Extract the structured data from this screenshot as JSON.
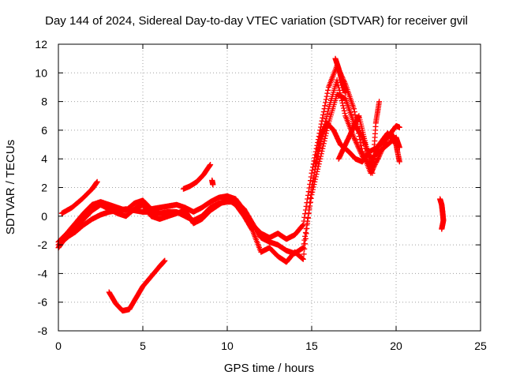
{
  "chart_data": {
    "type": "scatter",
    "title": "Day 144 of 2024, Sidereal Day-to-day VTEC variation (SDTVAR) for receiver gvil",
    "xlabel": "GPS time / hours",
    "ylabel": "SDTVAR / TECUs",
    "xlim": [
      0,
      25
    ],
    "ylim": [
      -8,
      12
    ],
    "x_ticks": [
      0,
      5,
      10,
      15,
      20,
      25
    ],
    "y_ticks": [
      -8,
      -6,
      -4,
      -2,
      0,
      2,
      4,
      6,
      8,
      10,
      12
    ],
    "grid": true,
    "marker": "+",
    "color": "#ff0000",
    "segments": [
      {
        "points": [
          [
            0.0,
            -2.2
          ],
          [
            0.3,
            -1.7
          ],
          [
            0.6,
            -1.4
          ],
          [
            1.0,
            -1.1
          ],
          [
            1.5,
            -0.6
          ],
          [
            2.0,
            -0.2
          ],
          [
            2.5,
            0.1
          ],
          [
            3.0,
            0.3
          ],
          [
            3.5,
            0.4
          ],
          [
            4.0,
            0.5
          ],
          [
            4.5,
            0.4
          ],
          [
            5.0,
            0.3
          ],
          [
            5.5,
            0.3
          ],
          [
            6.0,
            0.2
          ],
          [
            6.5,
            0.3
          ],
          [
            7.0,
            0.3
          ],
          [
            7.5,
            0.0
          ],
          [
            8.0,
            -0.3
          ],
          [
            8.5,
            0.0
          ],
          [
            9.0,
            0.6
          ],
          [
            9.5,
            0.9
          ],
          [
            10.0,
            1.0
          ],
          [
            10.5,
            1.0
          ],
          [
            11.0,
            0.5
          ],
          [
            11.5,
            -0.5
          ],
          [
            12.0,
            -1.5
          ],
          [
            12.5,
            -1.8
          ],
          [
            13.0,
            -2.0
          ],
          [
            13.5,
            -2.4
          ],
          [
            14.0,
            -2.6
          ],
          [
            14.5,
            -2.2
          ],
          [
            15.0,
            1.5
          ],
          [
            15.5,
            4.0
          ],
          [
            16.0,
            6.5
          ],
          [
            16.5,
            8.5
          ],
          [
            17.0,
            8.2
          ],
          [
            17.5,
            6.5
          ],
          [
            18.0,
            5.5
          ],
          [
            18.5,
            4.0
          ],
          [
            19.0,
            4.5
          ],
          [
            19.5,
            5.0
          ],
          [
            20.0,
            5.5
          ],
          [
            20.2,
            4.8
          ]
        ]
      },
      {
        "points": [
          [
            0.0,
            -1.8
          ],
          [
            0.5,
            -1.2
          ],
          [
            1.0,
            -0.5
          ],
          [
            1.5,
            0.2
          ],
          [
            2.0,
            0.8
          ],
          [
            2.5,
            1.0
          ],
          [
            3.0,
            0.8
          ],
          [
            3.5,
            0.6
          ],
          [
            4.0,
            0.4
          ],
          [
            4.5,
            0.9
          ],
          [
            5.0,
            1.1
          ],
          [
            5.5,
            0.5
          ],
          [
            6.0,
            0.6
          ],
          [
            6.5,
            0.7
          ],
          [
            7.0,
            0.8
          ],
          [
            7.5,
            0.6
          ],
          [
            8.0,
            0.3
          ],
          [
            8.5,
            0.6
          ],
          [
            9.0,
            1.0
          ],
          [
            9.5,
            1.3
          ],
          [
            10.0,
            1.4
          ],
          [
            10.5,
            1.2
          ],
          [
            11.0,
            0.4
          ],
          [
            11.5,
            -0.6
          ],
          [
            12.0,
            -1.2
          ],
          [
            12.5,
            -1.5
          ],
          [
            13.0,
            -1.2
          ],
          [
            13.5,
            -1.6
          ],
          [
            14.0,
            -1.3
          ],
          [
            14.5,
            -0.6
          ],
          [
            15.0,
            3.0
          ],
          [
            15.5,
            6.0
          ],
          [
            16.0,
            9.0
          ],
          [
            16.5,
            10.5
          ],
          [
            17.0,
            9.2
          ],
          [
            17.5,
            7.5
          ],
          [
            18.0,
            4.5
          ],
          [
            18.5,
            3.0
          ],
          [
            19.0,
            4.2
          ],
          [
            19.5,
            5.5
          ],
          [
            20.0,
            6.3
          ],
          [
            20.2,
            6.2
          ]
        ]
      },
      {
        "points": [
          [
            0.0,
            -2.0
          ],
          [
            0.5,
            -1.5
          ],
          [
            1.0,
            -0.8
          ],
          [
            1.5,
            -0.2
          ],
          [
            2.0,
            0.4
          ],
          [
            2.5,
            0.8
          ],
          [
            3.0,
            0.5
          ],
          [
            3.5,
            0.2
          ],
          [
            4.0,
            0.0
          ],
          [
            4.5,
            0.5
          ],
          [
            5.0,
            0.8
          ],
          [
            5.5,
            0.0
          ],
          [
            6.0,
            -0.2
          ],
          [
            6.5,
            0.0
          ],
          [
            7.0,
            0.2
          ],
          [
            7.5,
            0.4
          ],
          [
            8.0,
            -0.5
          ],
          [
            8.5,
            -0.2
          ],
          [
            9.0,
            0.4
          ],
          [
            9.5,
            0.8
          ],
          [
            10.0,
            1.2
          ],
          [
            10.5,
            0.8
          ],
          [
            11.0,
            0.0
          ],
          [
            11.5,
            -1.0
          ],
          [
            12.0,
            -2.5
          ],
          [
            12.5,
            -2.2
          ],
          [
            13.0,
            -2.8
          ],
          [
            13.5,
            -3.2
          ],
          [
            14.0,
            -2.5
          ],
          [
            14.5,
            -3.0
          ],
          [
            15.0,
            2.0
          ],
          [
            15.5,
            5.0
          ],
          [
            16.0,
            7.5
          ],
          [
            16.5,
            9.5
          ],
          [
            17.0,
            7.0
          ],
          [
            17.5,
            5.5
          ],
          [
            18.0,
            4.2
          ],
          [
            18.5,
            3.5
          ],
          [
            19.0,
            5.0
          ],
          [
            19.5,
            5.8
          ],
          [
            20.0,
            5.0
          ],
          [
            20.2,
            3.8
          ]
        ]
      },
      {
        "points": [
          [
            0.2,
            0.2
          ],
          [
            0.8,
            0.6
          ],
          [
            1.4,
            1.2
          ],
          [
            2.0,
            1.9
          ],
          [
            2.3,
            2.4
          ]
        ]
      },
      {
        "points": [
          [
            3.0,
            -5.3
          ],
          [
            3.4,
            -6.1
          ],
          [
            3.8,
            -6.6
          ],
          [
            4.2,
            -6.5
          ],
          [
            4.6,
            -5.7
          ],
          [
            5.0,
            -4.9
          ],
          [
            5.5,
            -4.2
          ],
          [
            6.0,
            -3.5
          ],
          [
            6.3,
            -3.1
          ]
        ]
      },
      {
        "points": [
          [
            7.4,
            1.9
          ],
          [
            7.8,
            2.1
          ],
          [
            8.2,
            2.4
          ],
          [
            8.6,
            2.9
          ],
          [
            9.0,
            3.6
          ]
        ]
      },
      {
        "points": [
          [
            9.1,
            2.5
          ],
          [
            9.15,
            2.2
          ]
        ]
      },
      {
        "points": [
          [
            15.2,
            3.5
          ],
          [
            15.5,
            5.5
          ],
          [
            15.9,
            6.5
          ],
          [
            16.3,
            6.0
          ],
          [
            16.7,
            5.0
          ],
          [
            17.2,
            4.5
          ],
          [
            17.6,
            4.0
          ],
          [
            18.0,
            3.8
          ],
          [
            18.4,
            4.5
          ],
          [
            18.9,
            4.8
          ],
          [
            19.3,
            5.3
          ],
          [
            19.7,
            5.8
          ],
          [
            20.0,
            5.0
          ]
        ]
      },
      {
        "points": [
          [
            16.4,
            11.0
          ],
          [
            16.6,
            10.3
          ],
          [
            16.8,
            9.4
          ],
          [
            17.0,
            8.6
          ]
        ]
      },
      {
        "points": [
          [
            16.6,
            4.0
          ],
          [
            17.0,
            5.0
          ],
          [
            17.4,
            6.0
          ],
          [
            17.8,
            7.0
          ],
          [
            18.2,
            5.0
          ],
          [
            18.6,
            3.0
          ],
          [
            18.8,
            6.5
          ],
          [
            19.0,
            8.0
          ]
        ]
      },
      {
        "points": [
          [
            22.6,
            1.2
          ],
          [
            22.7,
            0.8
          ],
          [
            22.75,
            0.3
          ],
          [
            22.8,
            -0.3
          ],
          [
            22.7,
            -0.9
          ]
        ]
      }
    ]
  }
}
